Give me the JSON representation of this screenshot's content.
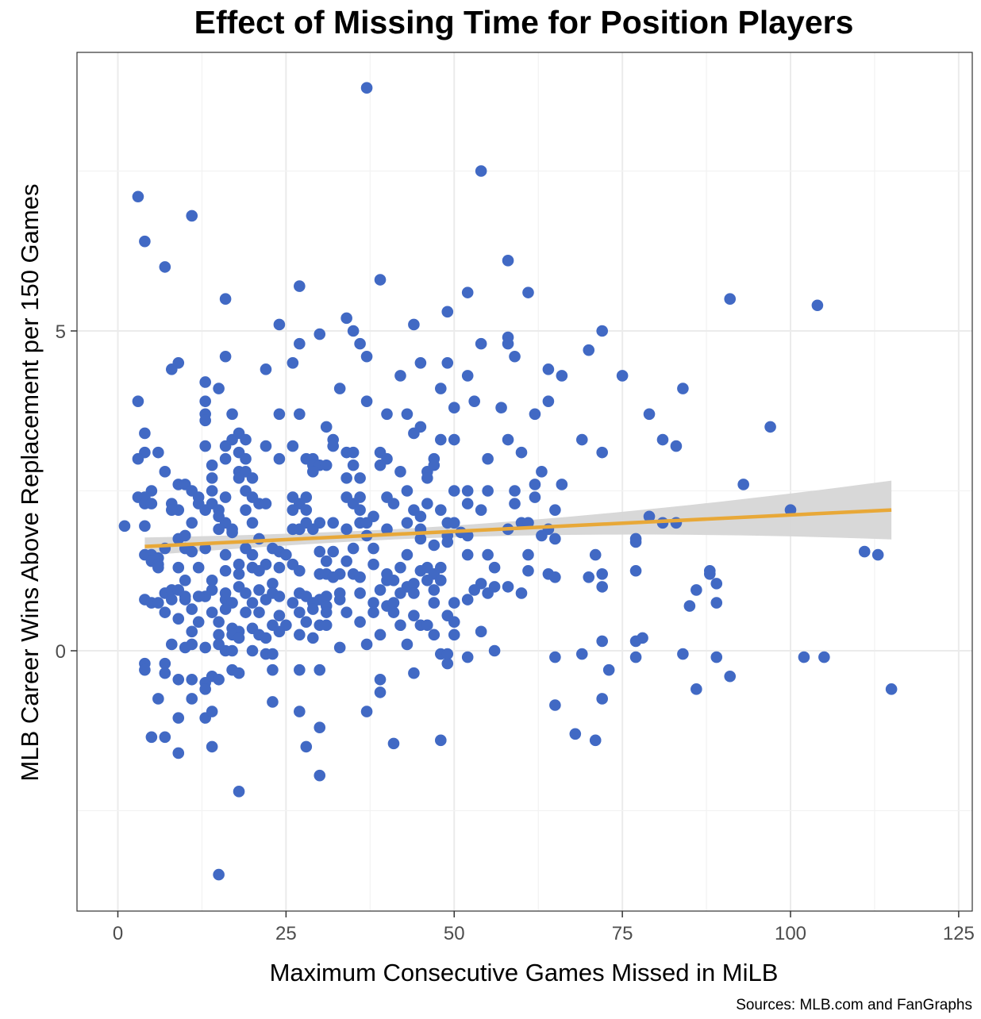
{
  "chart_data": {
    "type": "scatter",
    "title": "Effect of Missing Time for Position Players",
    "xlabel": "Maximum Consecutive Games Missed in MiLB",
    "ylabel": "MLB Career Wins Above Replacement per 150 Games",
    "caption": "Sources: MLB.com and FanGraphs",
    "xlim": [
      -6,
      127
    ],
    "ylim": [
      -4,
      9.5
    ],
    "x_ticks": [
      0,
      25,
      50,
      75,
      100,
      125
    ],
    "x_tick_labels": [
      "0",
      "25",
      "50",
      "75",
      "100",
      "125"
    ],
    "y_ticks": [
      0,
      5
    ],
    "y_tick_labels": [
      "0",
      "5"
    ],
    "grid": true,
    "colors": {
      "points": "#4169c4",
      "trend": "#e8a838",
      "band": "#d6d6d6",
      "grid": "#ebebeb",
      "frame": "#333333"
    },
    "trend": {
      "x_start": 4,
      "y_start": 1.63,
      "x_end": 115,
      "y_end": 2.2,
      "ci_low_start": 1.36,
      "ci_high_start": 1.92,
      "ci_low_end": 1.63,
      "ci_high_end": 2.74
    },
    "points": [
      [
        37,
        8.8
      ],
      [
        54,
        7.5
      ],
      [
        3,
        7.1
      ],
      [
        11,
        6.8
      ],
      [
        4,
        6.4
      ],
      [
        7,
        6.0
      ],
      [
        58,
        6.1
      ],
      [
        27,
        5.7
      ],
      [
        39,
        5.8
      ],
      [
        52,
        5.6
      ],
      [
        61,
        5.6
      ],
      [
        16,
        5.5
      ],
      [
        91,
        5.5
      ],
      [
        104,
        5.4
      ],
      [
        34,
        5.2
      ],
      [
        44,
        5.1
      ],
      [
        49,
        5.3
      ],
      [
        24,
        5.1
      ],
      [
        35,
        5.0
      ],
      [
        30,
        4.95
      ],
      [
        58,
        4.9
      ],
      [
        72,
        5.0
      ],
      [
        16,
        4.6
      ],
      [
        27,
        4.8
      ],
      [
        36,
        4.8
      ],
      [
        37,
        4.6
      ],
      [
        54,
        4.8
      ],
      [
        58,
        4.8
      ],
      [
        59,
        4.6
      ],
      [
        70,
        4.7
      ],
      [
        8,
        4.4
      ],
      [
        9,
        4.5
      ],
      [
        22,
        4.4
      ],
      [
        26,
        4.5
      ],
      [
        45,
        4.5
      ],
      [
        49,
        4.5
      ],
      [
        64,
        4.4
      ],
      [
        66,
        4.3
      ],
      [
        75,
        4.3
      ],
      [
        42,
        4.3
      ],
      [
        52,
        4.3
      ],
      [
        13,
        4.2
      ],
      [
        15,
        4.1
      ],
      [
        33,
        4.1
      ],
      [
        48,
        4.1
      ],
      [
        84,
        4.1
      ],
      [
        3,
        3.9
      ],
      [
        13,
        3.9
      ],
      [
        37,
        3.9
      ],
      [
        53,
        3.9
      ],
      [
        13,
        3.7
      ],
      [
        17,
        3.7
      ],
      [
        24,
        3.7
      ],
      [
        27,
        3.7
      ],
      [
        40,
        3.7
      ],
      [
        43,
        3.7
      ],
      [
        50,
        3.8
      ],
      [
        57,
        3.8
      ],
      [
        64,
        3.9
      ],
      [
        62,
        3.7
      ],
      [
        13,
        3.6
      ],
      [
        45,
        3.5
      ],
      [
        44,
        3.4
      ],
      [
        4,
        3.4
      ],
      [
        31,
        3.5
      ],
      [
        50,
        3.3
      ],
      [
        58,
        3.3
      ],
      [
        69,
        3.3
      ],
      [
        79,
        3.7
      ],
      [
        81,
        3.3
      ],
      [
        83,
        3.2
      ],
      [
        97,
        3.5
      ],
      [
        13,
        3.2
      ],
      [
        16,
        3.2
      ],
      [
        17,
        3.3
      ],
      [
        18,
        3.4
      ],
      [
        19,
        3.3
      ],
      [
        22,
        3.2
      ],
      [
        26,
        3.2
      ],
      [
        32,
        3.3
      ],
      [
        48,
        3.3
      ],
      [
        6,
        3.1
      ],
      [
        4,
        3.1
      ],
      [
        3,
        3.0
      ],
      [
        16,
        3.0
      ],
      [
        18,
        3.1
      ],
      [
        19,
        3.0
      ],
      [
        24,
        3.0
      ],
      [
        28,
        3.0
      ],
      [
        29,
        3.0
      ],
      [
        32,
        3.2
      ],
      [
        34,
        3.1
      ],
      [
        35,
        3.1
      ],
      [
        39,
        3.1
      ],
      [
        40,
        3.0
      ],
      [
        47,
        3.0
      ],
      [
        55,
        3.0
      ],
      [
        60,
        3.1
      ],
      [
        72,
        3.1
      ],
      [
        7,
        2.8
      ],
      [
        14,
        2.9
      ],
      [
        18,
        2.8
      ],
      [
        19,
        2.8
      ],
      [
        20,
        2.7
      ],
      [
        29,
        2.9
      ],
      [
        30,
        2.9
      ],
      [
        31,
        2.9
      ],
      [
        35,
        2.9
      ],
      [
        39,
        2.9
      ],
      [
        42,
        2.8
      ],
      [
        46,
        2.8
      ],
      [
        47,
        2.9
      ],
      [
        63,
        2.8
      ],
      [
        14,
        2.7
      ],
      [
        18,
        2.7
      ],
      [
        29,
        2.8
      ],
      [
        34,
        2.7
      ],
      [
        36,
        2.7
      ],
      [
        46,
        2.7
      ],
      [
        9,
        2.6
      ],
      [
        10,
        2.6
      ],
      [
        11,
        2.5
      ],
      [
        12,
        2.4
      ],
      [
        5,
        2.5
      ],
      [
        3,
        2.4
      ],
      [
        4,
        2.4
      ],
      [
        14,
        2.5
      ],
      [
        16,
        2.4
      ],
      [
        19,
        2.5
      ],
      [
        20,
        2.4
      ],
      [
        26,
        2.4
      ],
      [
        28,
        2.4
      ],
      [
        34,
        2.4
      ],
      [
        36,
        2.4
      ],
      [
        40,
        2.4
      ],
      [
        43,
        2.5
      ],
      [
        50,
        2.5
      ],
      [
        52,
        2.5
      ],
      [
        55,
        2.5
      ],
      [
        59,
        2.5
      ],
      [
        62,
        2.6
      ],
      [
        66,
        2.6
      ],
      [
        93,
        2.6
      ],
      [
        4,
        2.3
      ],
      [
        5,
        2.3
      ],
      [
        8,
        2.3
      ],
      [
        9,
        2.2
      ],
      [
        12,
        2.3
      ],
      [
        13,
        2.2
      ],
      [
        14,
        2.3
      ],
      [
        21,
        2.3
      ],
      [
        22,
        2.3
      ],
      [
        27,
        2.3
      ],
      [
        35,
        2.3
      ],
      [
        41,
        2.3
      ],
      [
        46,
        2.3
      ],
      [
        48,
        2.2
      ],
      [
        52,
        2.3
      ],
      [
        59,
        2.3
      ],
      [
        62,
        2.4
      ],
      [
        8,
        2.2
      ],
      [
        15,
        2.2
      ],
      [
        19,
        2.2
      ],
      [
        26,
        2.2
      ],
      [
        28,
        2.2
      ],
      [
        36,
        2.2
      ],
      [
        44,
        2.2
      ],
      [
        38,
        2.1
      ],
      [
        45,
        2.1
      ],
      [
        54,
        2.2
      ],
      [
        65,
        2.2
      ],
      [
        79,
        2.1
      ],
      [
        100,
        2.2
      ],
      [
        11,
        2.0
      ],
      [
        16,
        2.0
      ],
      [
        17,
        1.9
      ],
      [
        15,
        1.9
      ],
      [
        15,
        2.1
      ],
      [
        20,
        2.0
      ],
      [
        28,
        2.0
      ],
      [
        30,
        2.0
      ],
      [
        32,
        2.0
      ],
      [
        36,
        2.0
      ],
      [
        37,
        2.0
      ],
      [
        43,
        2.0
      ],
      [
        45,
        1.9
      ],
      [
        49,
        2.0
      ],
      [
        50,
        2.0
      ],
      [
        58,
        1.9
      ],
      [
        60,
        2.0
      ],
      [
        61,
        2.0
      ],
      [
        64,
        1.9
      ],
      [
        81,
        2.0
      ],
      [
        83,
        2.0
      ],
      [
        1,
        1.95
      ],
      [
        4,
        1.95
      ],
      [
        9,
        1.75
      ],
      [
        10,
        1.8
      ],
      [
        17,
        1.85
      ],
      [
        21,
        1.75
      ],
      [
        26,
        1.9
      ],
      [
        27,
        1.9
      ],
      [
        29,
        1.9
      ],
      [
        34,
        1.9
      ],
      [
        37,
        1.8
      ],
      [
        40,
        1.9
      ],
      [
        45,
        1.75
      ],
      [
        49,
        1.8
      ],
      [
        51,
        1.85
      ],
      [
        52,
        1.8
      ],
      [
        63,
        1.8
      ],
      [
        65,
        1.75
      ],
      [
        77,
        1.7
      ],
      [
        77,
        1.75
      ],
      [
        5,
        1.5
      ],
      [
        6,
        1.45
      ],
      [
        7,
        1.6
      ],
      [
        10,
        1.6
      ],
      [
        11,
        1.55
      ],
      [
        13,
        1.6
      ],
      [
        16,
        1.5
      ],
      [
        19,
        1.6
      ],
      [
        20,
        1.5
      ],
      [
        23,
        1.6
      ],
      [
        24,
        1.55
      ],
      [
        25,
        1.5
      ],
      [
        30,
        1.55
      ],
      [
        32,
        1.55
      ],
      [
        35,
        1.6
      ],
      [
        38,
        1.6
      ],
      [
        43,
        1.5
      ],
      [
        47,
        1.65
      ],
      [
        49,
        1.7
      ],
      [
        52,
        1.5
      ],
      [
        55,
        1.5
      ],
      [
        61,
        1.5
      ],
      [
        71,
        1.5
      ],
      [
        111,
        1.55
      ],
      [
        113,
        1.5
      ],
      [
        4,
        1.5
      ],
      [
        5,
        1.4
      ],
      [
        6,
        1.35
      ],
      [
        9,
        1.3
      ],
      [
        12,
        1.3
      ],
      [
        16,
        1.25
      ],
      [
        18,
        1.35
      ],
      [
        20,
        1.3
      ],
      [
        22,
        1.35
      ],
      [
        24,
        1.3
      ],
      [
        26,
        1.35
      ],
      [
        31,
        1.4
      ],
      [
        34,
        1.4
      ],
      [
        38,
        1.35
      ],
      [
        42,
        1.3
      ],
      [
        46,
        1.3
      ],
      [
        48,
        1.3
      ],
      [
        56,
        1.3
      ],
      [
        6,
        1.3
      ],
      [
        18,
        1.2
      ],
      [
        21,
        1.25
      ],
      [
        27,
        1.25
      ],
      [
        33,
        1.2
      ],
      [
        35,
        1.2
      ],
      [
        40,
        1.2
      ],
      [
        45,
        1.25
      ],
      [
        47,
        1.2
      ],
      [
        61,
        1.25
      ],
      [
        64,
        1.2
      ],
      [
        72,
        1.2
      ],
      [
        77,
        1.25
      ],
      [
        88,
        1.2
      ],
      [
        88,
        1.25
      ],
      [
        10,
        1.1
      ],
      [
        14,
        1.1
      ],
      [
        18,
        1.0
      ],
      [
        23,
        1.05
      ],
      [
        30,
        1.2
      ],
      [
        31,
        1.2
      ],
      [
        32,
        1.15
      ],
      [
        36,
        1.15
      ],
      [
        40,
        1.1
      ],
      [
        41,
        1.1
      ],
      [
        43,
        1.0
      ],
      [
        44,
        1.05
      ],
      [
        46,
        1.1
      ],
      [
        48,
        1.1
      ],
      [
        54,
        1.05
      ],
      [
        56,
        1.0
      ],
      [
        58,
        1.0
      ],
      [
        65,
        1.15
      ],
      [
        70,
        1.15
      ],
      [
        72,
        1.0
      ],
      [
        89,
        1.05
      ],
      [
        7,
        0.9
      ],
      [
        8,
        0.95
      ],
      [
        9,
        0.95
      ],
      [
        10,
        0.85
      ],
      [
        13,
        0.85
      ],
      [
        14,
        0.95
      ],
      [
        16,
        0.9
      ],
      [
        19,
        0.9
      ],
      [
        21,
        0.95
      ],
      [
        23,
        0.9
      ],
      [
        24,
        0.85
      ],
      [
        27,
        0.9
      ],
      [
        28,
        0.85
      ],
      [
        30,
        0.8
      ],
      [
        31,
        0.85
      ],
      [
        33,
        0.9
      ],
      [
        36,
        0.9
      ],
      [
        39,
        0.95
      ],
      [
        42,
        0.9
      ],
      [
        44,
        0.9
      ],
      [
        47,
        0.95
      ],
      [
        53,
        0.95
      ],
      [
        55,
        0.9
      ],
      [
        60,
        0.9
      ],
      [
        4,
        0.8
      ],
      [
        5,
        0.75
      ],
      [
        6,
        0.75
      ],
      [
        8,
        0.8
      ],
      [
        10,
        0.8
      ],
      [
        12,
        0.85
      ],
      [
        16,
        0.8
      ],
      [
        17,
        0.75
      ],
      [
        20,
        0.75
      ],
      [
        22,
        0.8
      ],
      [
        26,
        0.75
      ],
      [
        29,
        0.75
      ],
      [
        31,
        0.7
      ],
      [
        33,
        0.8
      ],
      [
        38,
        0.75
      ],
      [
        40,
        0.7
      ],
      [
        41,
        0.75
      ],
      [
        47,
        0.75
      ],
      [
        50,
        0.75
      ],
      [
        52,
        0.8
      ],
      [
        85,
        0.7
      ],
      [
        86,
        0.95
      ],
      [
        89,
        0.75
      ],
      [
        7,
        0.6
      ],
      [
        11,
        0.65
      ],
      [
        14,
        0.6
      ],
      [
        16,
        0.65
      ],
      [
        19,
        0.6
      ],
      [
        21,
        0.6
      ],
      [
        24,
        0.55
      ],
      [
        27,
        0.6
      ],
      [
        29,
        0.65
      ],
      [
        31,
        0.6
      ],
      [
        34,
        0.6
      ],
      [
        38,
        0.6
      ],
      [
        41,
        0.6
      ],
      [
        44,
        0.55
      ],
      [
        49,
        0.55
      ],
      [
        8,
        0.1
      ],
      [
        9,
        0.5
      ],
      [
        12,
        0.45
      ],
      [
        15,
        0.45
      ],
      [
        17,
        0.35
      ],
      [
        18,
        0.3
      ],
      [
        20,
        0.35
      ],
      [
        23,
        0.4
      ],
      [
        25,
        0.4
      ],
      [
        28,
        0.45
      ],
      [
        30,
        0.4
      ],
      [
        31,
        0.4
      ],
      [
        36,
        0.45
      ],
      [
        42,
        0.4
      ],
      [
        45,
        0.4
      ],
      [
        46,
        0.4
      ],
      [
        50,
        0.45
      ],
      [
        11,
        0.3
      ],
      [
        15,
        0.25
      ],
      [
        17,
        0.25
      ],
      [
        18,
        0.2
      ],
      [
        21,
        0.25
      ],
      [
        22,
        0.2
      ],
      [
        24,
        0.3
      ],
      [
        27,
        0.25
      ],
      [
        29,
        0.2
      ],
      [
        37,
        0.1
      ],
      [
        39,
        0.25
      ],
      [
        43,
        0.1
      ],
      [
        47,
        0.25
      ],
      [
        50,
        0.25
      ],
      [
        54,
        0.3
      ],
      [
        78,
        0.2
      ],
      [
        72,
        0.15
      ],
      [
        77,
        0.15
      ],
      [
        10,
        0.05
      ],
      [
        11,
        0.1
      ],
      [
        13,
        0.05
      ],
      [
        15,
        0.1
      ],
      [
        16,
        0.0
      ],
      [
        17,
        0.0
      ],
      [
        20,
        0.0
      ],
      [
        22,
        -0.05
      ],
      [
        23,
        -0.05
      ],
      [
        33,
        0.05
      ],
      [
        48,
        -0.05
      ],
      [
        49,
        -0.05
      ],
      [
        56,
        0.0
      ],
      [
        69,
        -0.05
      ],
      [
        65,
        -0.1
      ],
      [
        77,
        -0.1
      ],
      [
        84,
        -0.05
      ],
      [
        89,
        -0.1
      ],
      [
        102,
        -0.1
      ],
      [
        105,
        -0.1
      ],
      [
        4,
        -0.2
      ],
      [
        4,
        -0.3
      ],
      [
        7,
        -0.2
      ],
      [
        7,
        -0.35
      ],
      [
        9,
        -0.45
      ],
      [
        11,
        -0.45
      ],
      [
        13,
        -0.5
      ],
      [
        14,
        -0.4
      ],
      [
        15,
        -0.45
      ],
      [
        17,
        -0.3
      ],
      [
        18,
        -0.35
      ],
      [
        23,
        -0.3
      ],
      [
        27,
        -0.3
      ],
      [
        30,
        -0.3
      ],
      [
        39,
        -0.45
      ],
      [
        44,
        -0.35
      ],
      [
        49,
        -0.2
      ],
      [
        52,
        -0.1
      ],
      [
        73,
        -0.3
      ],
      [
        91,
        -0.4
      ],
      [
        13,
        -0.6
      ],
      [
        6,
        -0.75
      ],
      [
        11,
        -0.75
      ],
      [
        23,
        -0.8
      ],
      [
        39,
        -0.65
      ],
      [
        65,
        -0.85
      ],
      [
        72,
        -0.75
      ],
      [
        86,
        -0.6
      ],
      [
        115,
        -0.6
      ],
      [
        9,
        -1.05
      ],
      [
        13,
        -1.05
      ],
      [
        14,
        -0.95
      ],
      [
        27,
        -0.95
      ],
      [
        37,
        -0.95
      ],
      [
        30,
        -1.2
      ],
      [
        5,
        -1.35
      ],
      [
        7,
        -1.35
      ],
      [
        9,
        -1.6
      ],
      [
        14,
        -1.5
      ],
      [
        28,
        -1.5
      ],
      [
        41,
        -1.45
      ],
      [
        48,
        -1.4
      ],
      [
        68,
        -1.3
      ],
      [
        71,
        -1.4
      ],
      [
        30,
        -1.95
      ],
      [
        18,
        -2.2
      ],
      [
        15,
        -3.5
      ]
    ]
  }
}
